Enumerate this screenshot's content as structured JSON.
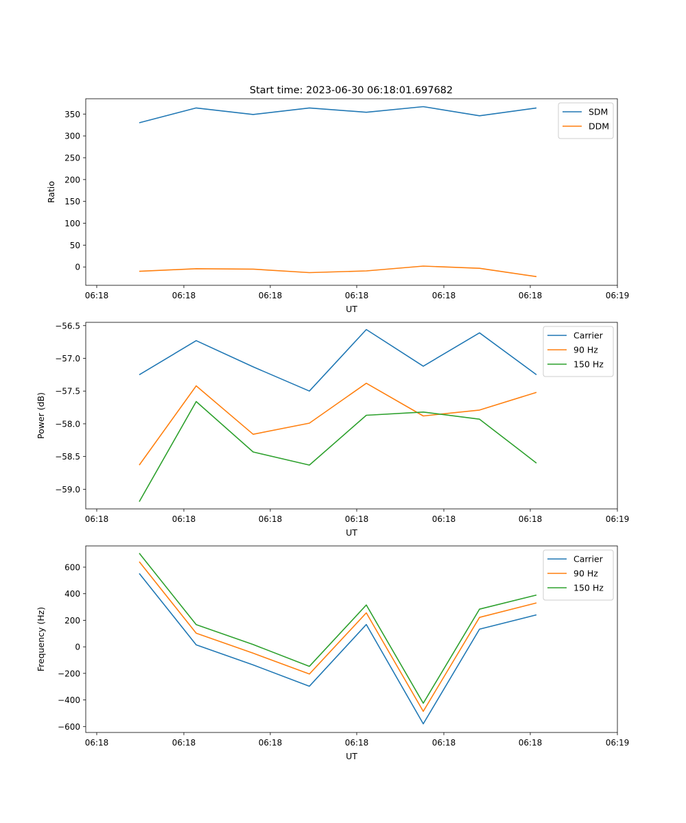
{
  "figure_title": "Start time: 2023-06-30 06:18:01.697682",
  "colors": {
    "c0": "#1f77b4",
    "c1": "#ff7f0e",
    "c2": "#2ca02c"
  },
  "chart_data": [
    {
      "type": "line",
      "xlabel": "UT",
      "ylabel": "Ratio",
      "x_tick_labels": [
        "06:18",
        "06:18",
        "06:18",
        "06:18",
        "06:18",
        "06:18",
        "06:19"
      ],
      "y_ticks": [
        0,
        50,
        100,
        150,
        200,
        250,
        300,
        350
      ],
      "ylim": [
        -42,
        385
      ],
      "legend_position": "upper right",
      "series": [
        {
          "name": "SDM",
          "color": "#1f77b4",
          "values": [
            330,
            364,
            349,
            364,
            354,
            367,
            346,
            364
          ]
        },
        {
          "name": "DDM",
          "color": "#ff7f0e",
          "values": [
            -10,
            -4,
            -5,
            -13,
            -9,
            2,
            -3,
            -22
          ]
        }
      ]
    },
    {
      "type": "line",
      "xlabel": "UT",
      "ylabel": "Power (dB)",
      "x_tick_labels": [
        "06:18",
        "06:18",
        "06:18",
        "06:18",
        "06:18",
        "06:18",
        "06:19"
      ],
      "y_ticks": [
        -59.0,
        -58.5,
        -58.0,
        -57.5,
        -57.0,
        -56.5
      ],
      "y_tick_labels": [
        "−59.0",
        "−58.5",
        "−58.0",
        "−57.5",
        "−57.0",
        "−56.5"
      ],
      "ylim": [
        -59.3,
        -56.45
      ],
      "legend_position": "upper right",
      "series": [
        {
          "name": "Carrier",
          "color": "#1f77b4",
          "values": [
            -57.25,
            -56.73,
            -57.13,
            -57.5,
            -56.56,
            -57.12,
            -56.61,
            -57.25
          ]
        },
        {
          "name": "90 Hz",
          "color": "#ff7f0e",
          "values": [
            -58.63,
            -57.42,
            -58.16,
            -57.99,
            -57.38,
            -57.88,
            -57.79,
            -57.52
          ]
        },
        {
          "name": "150 Hz",
          "color": "#2ca02c",
          "values": [
            -59.19,
            -57.66,
            -58.43,
            -58.63,
            -57.87,
            -57.82,
            -57.93,
            -58.6
          ]
        }
      ]
    },
    {
      "type": "line",
      "xlabel": "UT",
      "ylabel": "Frequency (Hz)",
      "x_tick_labels": [
        "06:18",
        "06:18",
        "06:18",
        "06:18",
        "06:18",
        "06:18",
        "06:19"
      ],
      "y_ticks": [
        -600,
        -400,
        -200,
        0,
        200,
        400,
        600
      ],
      "y_tick_labels": [
        "−600",
        "−400",
        "−200",
        "0",
        "200",
        "400",
        "600"
      ],
      "ylim": [
        -645,
        760
      ],
      "legend_position": "upper right",
      "series": [
        {
          "name": "Carrier",
          "color": "#1f77b4",
          "values": [
            553,
            15,
            -136,
            -297,
            168,
            -580,
            133,
            241
          ]
        },
        {
          "name": "90 Hz",
          "color": "#ff7f0e",
          "values": [
            641,
            103,
            -48,
            -205,
            256,
            -486,
            222,
            331
          ]
        },
        {
          "name": "150 Hz",
          "color": "#2ca02c",
          "values": [
            705,
            167,
            17,
            -147,
            315,
            -425,
            284,
            390
          ]
        }
      ]
    }
  ]
}
